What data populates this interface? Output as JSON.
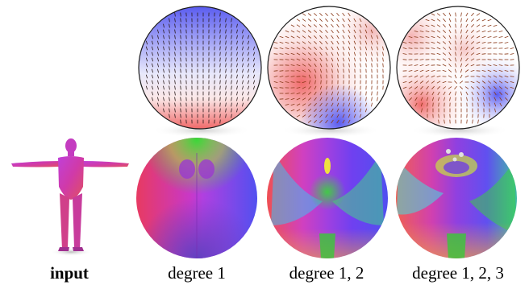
{
  "figure": {
    "captions": [
      {
        "id": "input",
        "text": "input",
        "bold": true
      },
      {
        "id": "deg1",
        "text": "degree 1",
        "bold": false
      },
      {
        "id": "deg12",
        "text": "degree 1, 2",
        "bold": false
      },
      {
        "id": "deg123",
        "text": "degree 1, 2, 3",
        "bold": false
      }
    ],
    "colors": {
      "field_blue": "#5a5cf0",
      "field_white": "#ffffff",
      "field_red": "#f06a6a",
      "stroke": "#1a1a1a",
      "tick_dark": "#2a1a1a",
      "tick_brown": "#8a3a1a",
      "normal_magenta": "#c838c8",
      "normal_green": "#38d838",
      "normal_blue": "#4040e8",
      "normal_orange": "#f09030",
      "figure_magenta": "#d03aa8"
    }
  }
}
